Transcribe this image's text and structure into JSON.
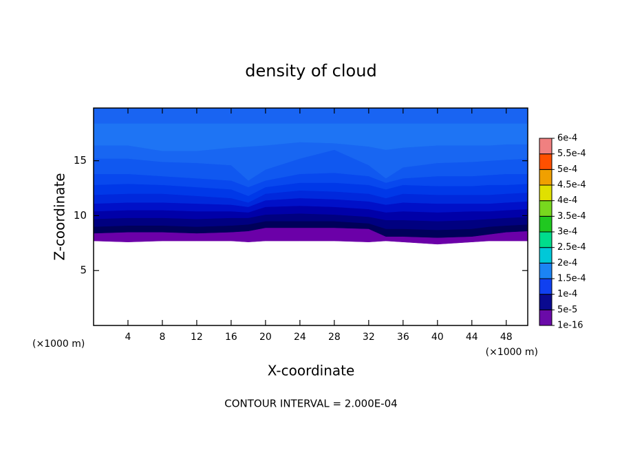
{
  "chart_data": {
    "type": "contour",
    "title": "density of cloud",
    "x_label": "X-coordinate",
    "y_label": "Z-coordinate",
    "x_unit": "(×1000 m)",
    "footer": "CONTOUR INTERVAL = 2.000E-04",
    "xlim": [
      0,
      50.5
    ],
    "ylim": [
      0,
      19.8
    ],
    "xticks": [
      4,
      8,
      12,
      16,
      20,
      24,
      28,
      32,
      36,
      40,
      44,
      48
    ],
    "yticks": [
      5,
      10,
      15
    ],
    "x": [
      0,
      4,
      8,
      12,
      16,
      18,
      20,
      24,
      28,
      32,
      34,
      36,
      40,
      44,
      46,
      48,
      50.5
    ],
    "layers": [
      {
        "color": "#6b00a8",
        "z": [
          7.7,
          7.6,
          7.7,
          7.7,
          7.7,
          7.6,
          7.7,
          7.7,
          7.7,
          7.6,
          7.7,
          7.6,
          7.4,
          7.6,
          7.7,
          7.7,
          7.7
        ]
      },
      {
        "color": "#00005a",
        "z": [
          8.4,
          8.5,
          8.5,
          8.4,
          8.5,
          8.6,
          8.9,
          8.9,
          8.9,
          8.8,
          8.1,
          8.1,
          8.0,
          8.1,
          8.3,
          8.5,
          8.6
        ]
      },
      {
        "color": "#000080",
        "z": [
          9.0,
          9.1,
          9.1,
          9.0,
          9.1,
          9.2,
          9.5,
          9.5,
          9.5,
          9.3,
          8.8,
          8.8,
          8.7,
          8.8,
          9.0,
          9.1,
          9.2
        ]
      },
      {
        "color": "#0000a8",
        "z": [
          9.7,
          9.8,
          9.8,
          9.7,
          9.8,
          9.8,
          10.1,
          10.2,
          10.1,
          9.9,
          9.6,
          9.6,
          9.5,
          9.6,
          9.7,
          9.8,
          9.9
        ]
      },
      {
        "color": "#0010c8",
        "z": [
          10.4,
          10.5,
          10.5,
          10.4,
          10.4,
          10.3,
          10.8,
          10.9,
          10.8,
          10.6,
          10.3,
          10.4,
          10.3,
          10.4,
          10.4,
          10.5,
          10.6
        ]
      },
      {
        "color": "#0028dc",
        "z": [
          11.1,
          11.2,
          11.2,
          11.1,
          11.0,
          10.8,
          11.4,
          11.6,
          11.5,
          11.3,
          11.0,
          11.2,
          11.1,
          11.1,
          11.1,
          11.2,
          11.3
        ]
      },
      {
        "color": "#0038e8",
        "z": [
          11.9,
          12.0,
          12.0,
          11.8,
          11.6,
          11.2,
          12.0,
          12.3,
          12.2,
          12.0,
          11.6,
          12.0,
          11.9,
          11.9,
          11.9,
          12.0,
          12.1
        ]
      },
      {
        "color": "#0848ee",
        "z": [
          12.8,
          12.9,
          12.8,
          12.6,
          12.4,
          11.8,
          12.6,
          13.0,
          13.0,
          12.8,
          12.4,
          12.8,
          12.7,
          12.7,
          12.8,
          12.8,
          12.9
        ]
      },
      {
        "color": "#1058f0",
        "z": [
          13.8,
          13.8,
          13.6,
          13.4,
          13.2,
          12.6,
          13.2,
          13.8,
          13.9,
          13.6,
          13.0,
          13.4,
          13.6,
          13.6,
          13.7,
          13.8,
          13.8
        ]
      },
      {
        "color": "#1866f2",
        "z": [
          15.2,
          15.2,
          14.9,
          14.8,
          14.6,
          13.2,
          14.2,
          15.2,
          16.0,
          14.6,
          13.4,
          14.4,
          14.8,
          14.9,
          15.0,
          15.1,
          15.2
        ]
      },
      {
        "color": "#1e74f4",
        "z": [
          16.4,
          16.4,
          15.9,
          15.9,
          16.2,
          16.3,
          16.4,
          16.7,
          16.6,
          16.3,
          16.0,
          16.2,
          16.4,
          16.4,
          16.4,
          16.5,
          16.5
        ]
      },
      {
        "color": "#1964f2",
        "z": [
          18.4,
          18.4,
          18.4,
          18.4,
          18.4,
          18.4,
          18.4,
          18.4,
          18.4,
          18.4,
          18.4,
          18.4,
          18.4,
          18.4,
          18.4,
          18.4,
          18.4
        ]
      }
    ],
    "colorbar": {
      "levels": [
        1e-16,
        {
          "value": 5e-05,
          "label": "5e-5"
        },
        {
          "value": 0.0001,
          "label": "1e-4"
        },
        {
          "value": 0.00015,
          "label": "1.5e-4"
        },
        {
          "value": 0.0002,
          "label": "2e-4"
        },
        {
          "value": 0.00025,
          "label": "2.5e-4"
        },
        {
          "value": 0.0003,
          "label": "3e-4"
        },
        {
          "value": 0.00035,
          "label": "3.5e-4"
        },
        {
          "value": 0.0004,
          "label": "4e-4"
        },
        {
          "value": 0.00045,
          "label": "4.5e-4"
        },
        {
          "value": 0.0005,
          "label": "5e-4"
        },
        {
          "value": 0.00055,
          "label": "5.5e-4"
        },
        {
          "value": 0.0006,
          "label": "6e-4"
        }
      ],
      "colors": [
        "#6a0aa8",
        "#0a0a90",
        "#1040f0",
        "#1b84f4",
        "#00c8d8",
        "#00dc8c",
        "#20c820",
        "#78d81e",
        "#e0e000",
        "#f0a000",
        "#ff5000",
        "#f08080"
      ]
    }
  }
}
